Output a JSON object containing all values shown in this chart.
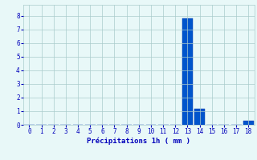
{
  "x_values": [
    0,
    1,
    2,
    3,
    4,
    5,
    6,
    7,
    8,
    9,
    10,
    11,
    12,
    13,
    14,
    15,
    16,
    17,
    18
  ],
  "bar_heights": [
    0,
    0,
    0,
    0,
    0,
    0,
    0,
    0,
    0,
    0,
    0,
    0,
    0,
    7.8,
    1.2,
    0,
    0,
    0,
    0.3
  ],
  "bar_color": "#0055cc",
  "bar_edge_color": "#0033aa",
  "background_color": "#e8f8f8",
  "grid_color": "#aacccc",
  "xlabel": "Précipitations 1h ( mm )",
  "xlabel_color": "#0000bb",
  "tick_color": "#0000bb",
  "xlim": [
    -0.5,
    18.5
  ],
  "ylim": [
    0,
    8.8
  ],
  "yticks": [
    0,
    1,
    2,
    3,
    4,
    5,
    6,
    7,
    8
  ],
  "xticks": [
    0,
    1,
    2,
    3,
    4,
    5,
    6,
    7,
    8,
    9,
    10,
    11,
    12,
    13,
    14,
    15,
    16,
    17,
    18
  ],
  "bar_width": 0.85
}
